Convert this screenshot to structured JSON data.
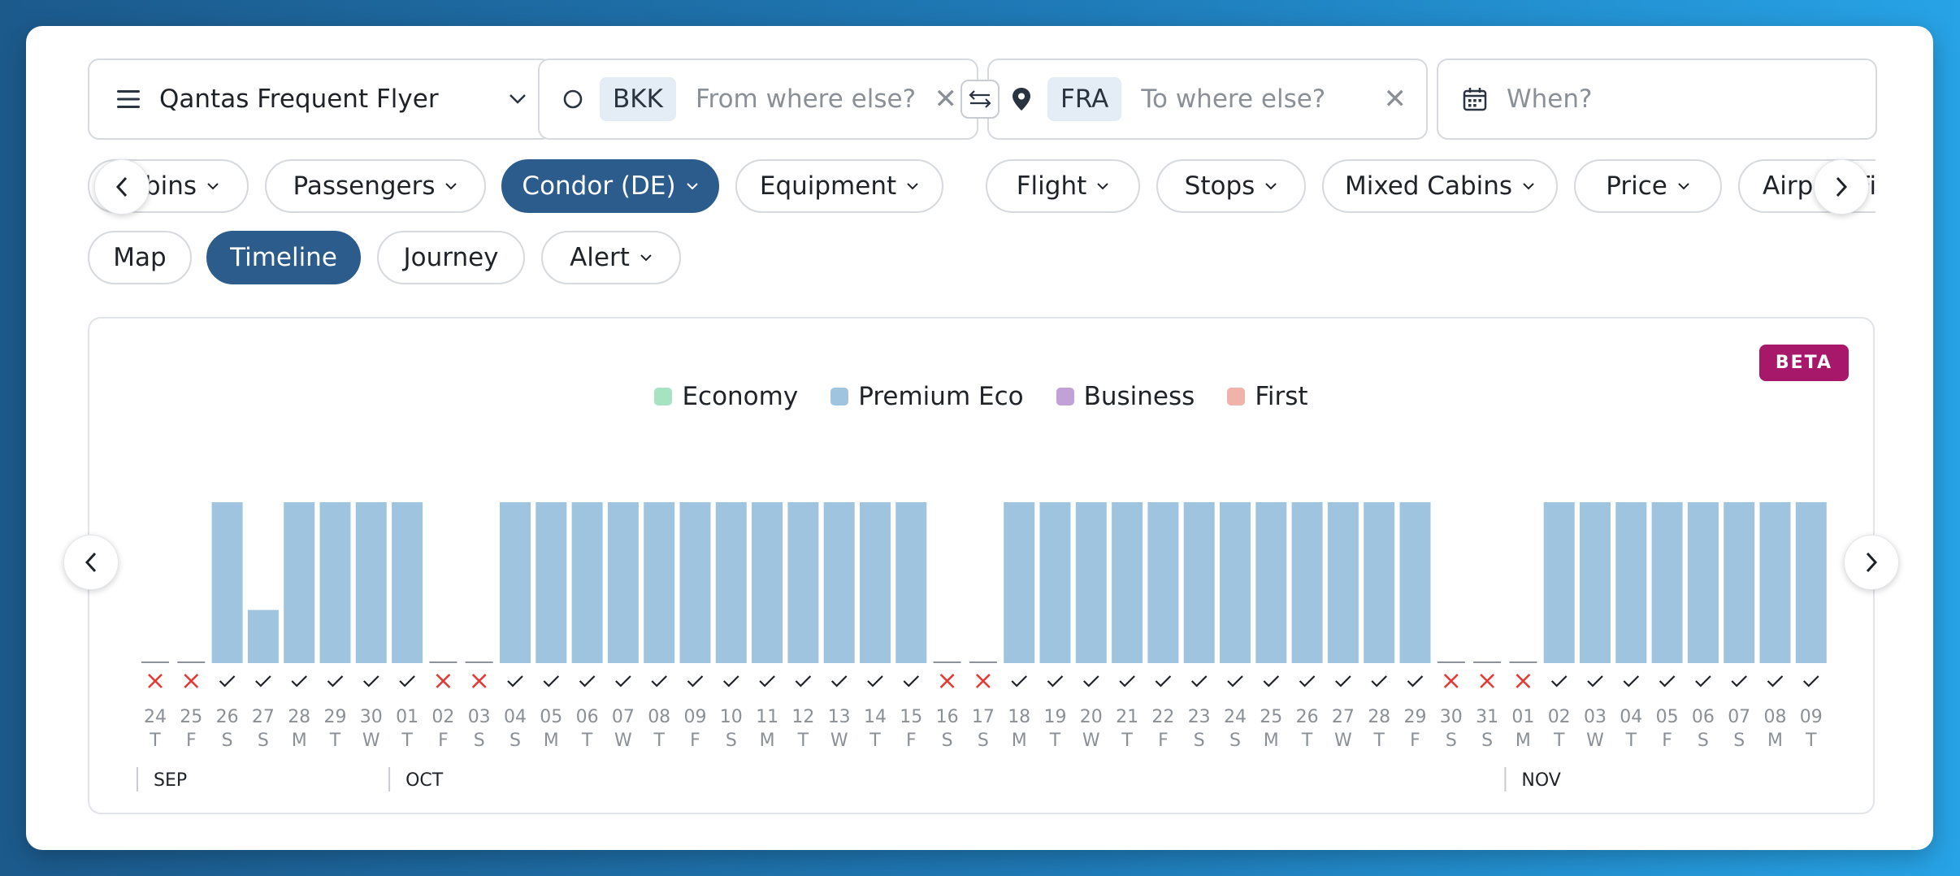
{
  "program_select": {
    "value": "Qantas Frequent Flyer"
  },
  "origin": {
    "code": "BKK",
    "placeholder": "From where else?"
  },
  "destination": {
    "code": "FRA",
    "placeholder": "To where else?"
  },
  "date_field": {
    "placeholder": "When?"
  },
  "filters": [
    "Cabins",
    "Passengers",
    "Condor (DE)",
    "Equipment",
    "Flight",
    "Stops",
    "Mixed Cabins",
    "Price",
    "Airport Filter"
  ],
  "active_filter": "Condor (DE)",
  "views": [
    "Map",
    "Timeline",
    "Journey",
    "Alert"
  ],
  "active_view": "Timeline",
  "badge": "BETA",
  "legend": [
    {
      "label": "Economy",
      "color": "#a6e3c1"
    },
    {
      "label": "Premium Eco",
      "color": "#9fc4df"
    },
    {
      "label": "Business",
      "color": "#c2a2d6"
    },
    {
      "label": "First",
      "color": "#f0b3aa"
    }
  ],
  "colors": {
    "accent": "#2b5c8c",
    "bar": "#9fc4df",
    "unavailable": "#e53935",
    "beta": "#a8186a"
  },
  "chart_data": {
    "type": "bar",
    "series": [
      {
        "name": "Premium Eco",
        "values": [
          0,
          0,
          1,
          0.33,
          1,
          1,
          1,
          1,
          0,
          0,
          1,
          1,
          1,
          1,
          1,
          1,
          1,
          1,
          1,
          1,
          1,
          1,
          0,
          0,
          1,
          1,
          1,
          1,
          1,
          1,
          1,
          1,
          1,
          1,
          1,
          1,
          0,
          0,
          0,
          1,
          1,
          1,
          1,
          1,
          1,
          1,
          1
        ]
      }
    ],
    "days": [
      "24",
      "25",
      "26",
      "27",
      "28",
      "29",
      "30",
      "01",
      "02",
      "03",
      "04",
      "05",
      "06",
      "07",
      "08",
      "09",
      "10",
      "11",
      "12",
      "13",
      "14",
      "15",
      "16",
      "17",
      "18",
      "19",
      "20",
      "21",
      "22",
      "23",
      "24",
      "25",
      "26",
      "27",
      "28",
      "29",
      "30",
      "31",
      "01",
      "02",
      "03",
      "04",
      "05",
      "06",
      "07",
      "08",
      "09"
    ],
    "weekdays": [
      "T",
      "F",
      "S",
      "S",
      "M",
      "T",
      "W",
      "T",
      "F",
      "S",
      "S",
      "M",
      "T",
      "W",
      "T",
      "F",
      "S",
      "M",
      "T",
      "W",
      "T",
      "F",
      "S",
      "S",
      "M",
      "T",
      "W",
      "T",
      "F",
      "S",
      "S",
      "M",
      "T",
      "W",
      "T",
      "F",
      "S",
      "S",
      "M",
      "T",
      "W",
      "T",
      "F",
      "S",
      "S",
      "M",
      "T"
    ],
    "available": [
      false,
      false,
      true,
      true,
      true,
      true,
      true,
      true,
      false,
      false,
      true,
      true,
      true,
      true,
      true,
      true,
      true,
      true,
      true,
      true,
      true,
      true,
      false,
      false,
      true,
      true,
      true,
      true,
      true,
      true,
      true,
      true,
      true,
      true,
      true,
      true,
      false,
      false,
      false,
      true,
      true,
      true,
      true,
      true,
      true,
      true,
      true
    ],
    "months": [
      {
        "label": "SEP",
        "start_index": 0
      },
      {
        "label": "OCT",
        "start_index": 7
      },
      {
        "label": "NOV",
        "start_index": 38
      }
    ]
  }
}
